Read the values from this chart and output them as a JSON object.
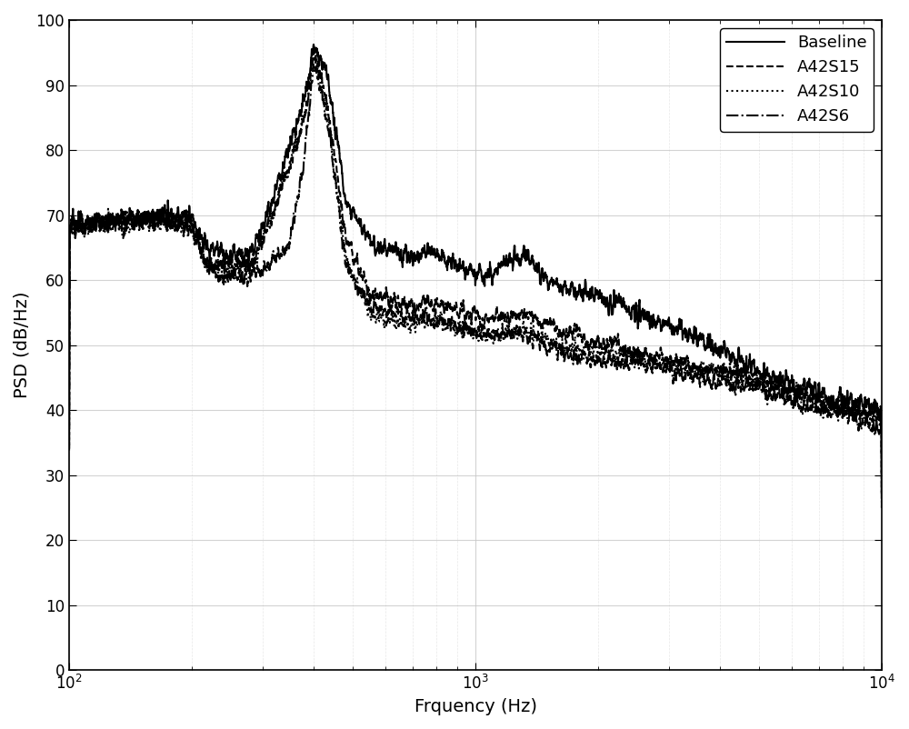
{
  "xlabel": "Frquency (Hz)",
  "ylabel": "PSD (dB/Hz)",
  "xlim": [
    100,
    10000
  ],
  "ylim": [
    0,
    100
  ],
  "yticks": [
    0,
    10,
    20,
    30,
    40,
    50,
    60,
    70,
    80,
    90,
    100
  ],
  "line_color": "#000000",
  "background_color": "#ffffff",
  "grid_color_major": "#c8c8c8",
  "grid_color_minor": "#d8d8d8",
  "legend_labels": [
    "Baseline",
    "A42S15",
    "A42S10",
    "A42S6"
  ],
  "legend_linestyles": [
    "-",
    "--",
    ":",
    "-."
  ],
  "legend_linewidths": [
    1.5,
    1.5,
    1.5,
    1.5
  ],
  "figsize": [
    10.0,
    8.02
  ],
  "dpi": 100
}
